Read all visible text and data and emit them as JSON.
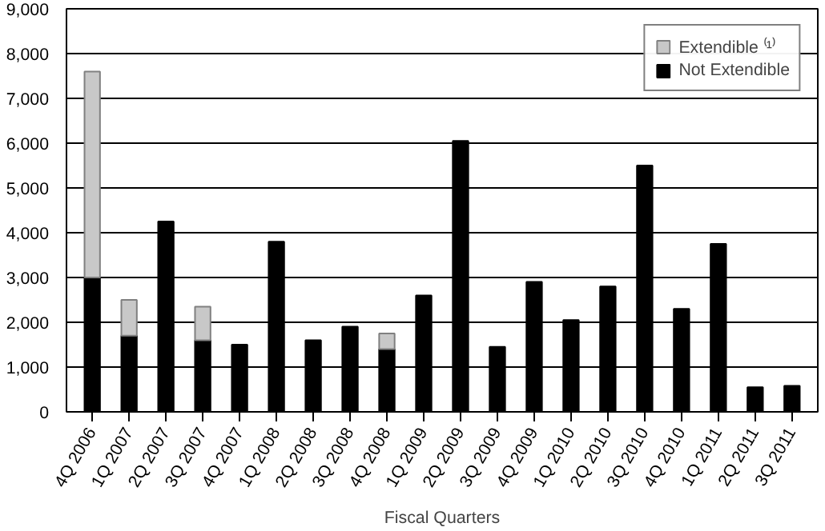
{
  "chart_data": {
    "type": "bar",
    "stacked": true,
    "xlabel": "Fiscal Quarters",
    "categories": [
      "4Q 2006",
      "1Q 2007",
      "2Q 2007",
      "3Q 2007",
      "4Q 2007",
      "1Q 2008",
      "2Q 2008",
      "3Q 2008",
      "4Q 2008",
      "1Q 2009",
      "2Q 2009",
      "3Q 2009",
      "4Q 2009",
      "1Q 2010",
      "2Q 2010",
      "3Q 2010",
      "4Q 2010",
      "1Q 2011",
      "2Q 2011",
      "3Q 2011"
    ],
    "series": [
      {
        "name": "Not Extendible",
        "color": "#000000",
        "values": [
          3000,
          1700,
          4250,
          1600,
          1500,
          3800,
          1600,
          1900,
          1400,
          2600,
          6050,
          1450,
          2900,
          2050,
          2800,
          5500,
          2300,
          3750,
          550,
          580
        ]
      },
      {
        "name": "Extendible ⁽¹⁾",
        "color": "#c8c8c8",
        "values": [
          4600,
          800,
          null,
          750,
          null,
          null,
          null,
          null,
          350,
          null,
          null,
          null,
          null,
          null,
          null,
          null,
          null,
          null,
          null,
          null
        ]
      }
    ],
    "ylim": [
      0,
      9000
    ],
    "yticks": [
      0,
      {
        "value": 1000,
        "label": "1,000"
      },
      {
        "value": 2000,
        "label": "2,000"
      },
      {
        "value": 3000,
        "label": "3,000"
      },
      {
        "value": 4000,
        "label": "4,000"
      },
      {
        "value": 5000,
        "label": "5,000"
      },
      {
        "value": 6000,
        "label": "6,000"
      },
      {
        "value": 7000,
        "label": "7,000"
      },
      {
        "value": 8000,
        "label": "8,000"
      },
      {
        "value": 9000,
        "label": "9,000"
      }
    ],
    "grid": "y",
    "legend": "top right"
  }
}
